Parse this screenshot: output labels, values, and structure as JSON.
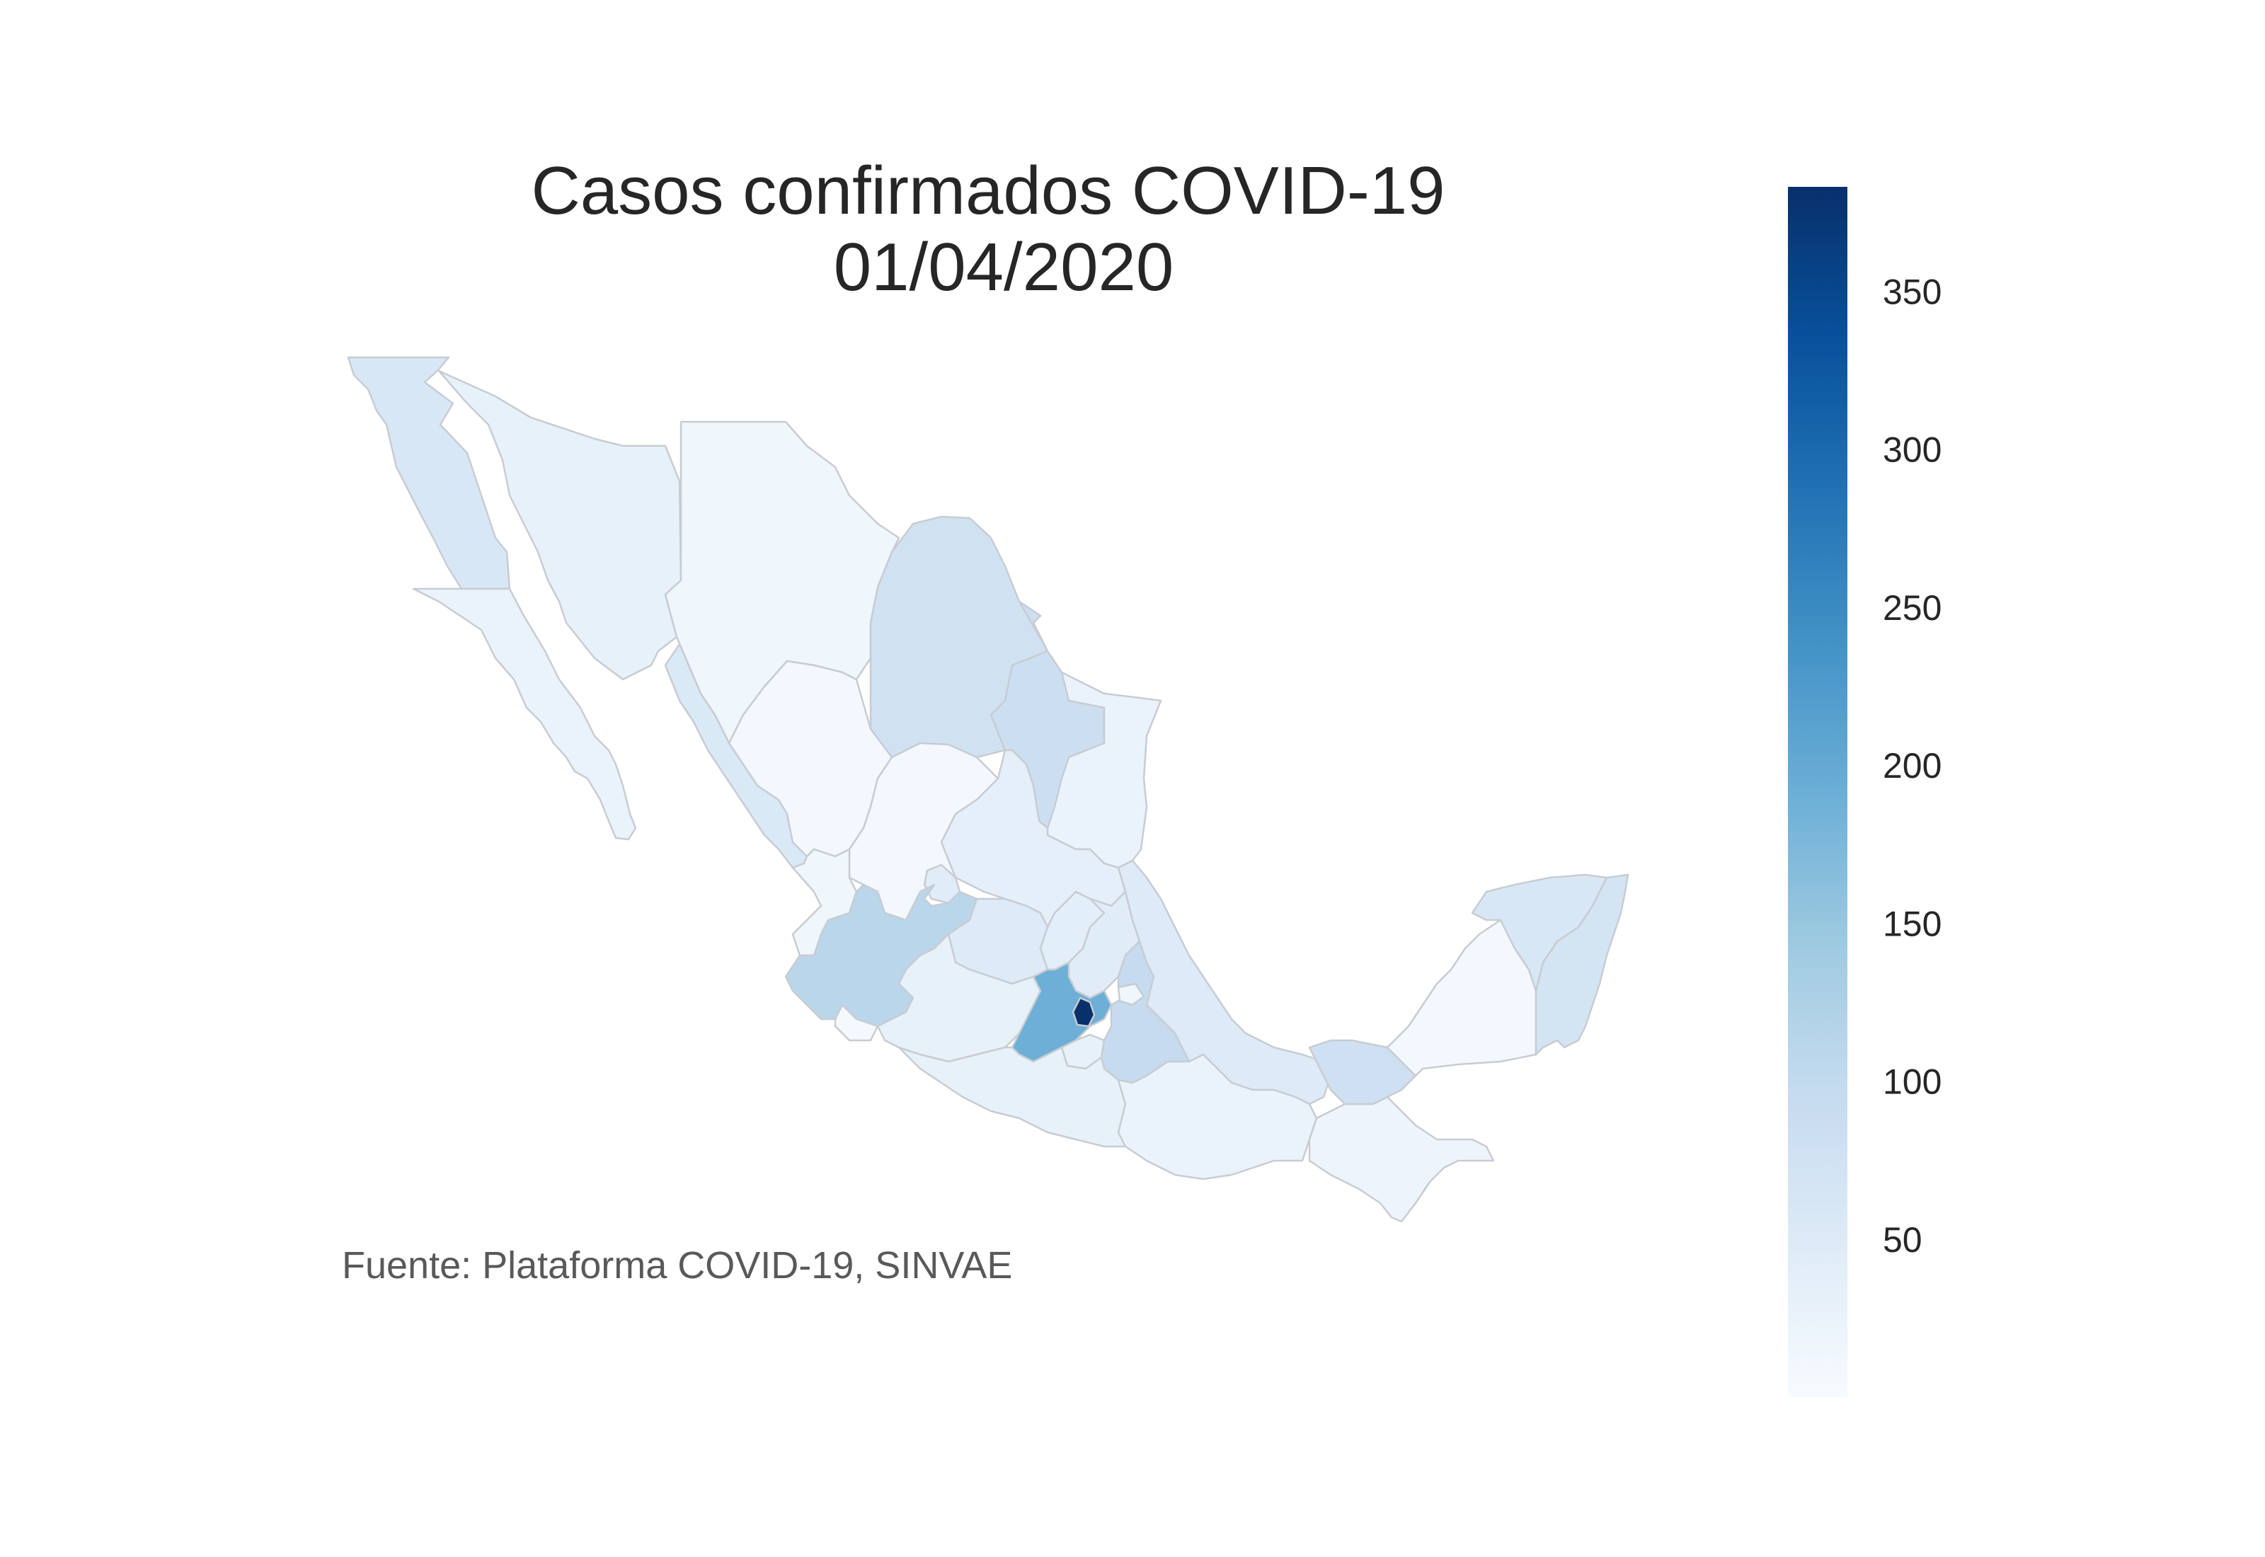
{
  "title": {
    "line1": "Casos confirmados COVID-19",
    "line2": "01/04/2020"
  },
  "source": "Fuente: Plataforma COVID-19, SINVAE",
  "colorbar": {
    "min": 0,
    "max": 383,
    "ticks": [
      {
        "value": 50,
        "label": "50"
      },
      {
        "value": 100,
        "label": "100"
      },
      {
        "value": 150,
        "label": "150"
      },
      {
        "value": 200,
        "label": "200"
      },
      {
        "value": 250,
        "label": "250"
      },
      {
        "value": 300,
        "label": "300"
      },
      {
        "value": 350,
        "label": "350"
      }
    ],
    "colormap": "Blues",
    "stops": [
      "#f7fbff",
      "#deebf7",
      "#c6dbef",
      "#9ecae1",
      "#6baed6",
      "#4292c6",
      "#2171b5",
      "#08519c",
      "#08306b"
    ]
  },
  "chart_data": {
    "type": "choropleth",
    "title": "Casos confirmados COVID-19 01/04/2020",
    "legend": "colorbar right",
    "value_range": [
      0,
      383
    ],
    "regions": [
      {
        "name": "Baja California",
        "value": 60
      },
      {
        "name": "Baja California Sur",
        "value": 25
      },
      {
        "name": "Sonora",
        "value": 30
      },
      {
        "name": "Chihuahua",
        "value": 15
      },
      {
        "name": "Coahuila",
        "value": 75
      },
      {
        "name": "Nuevo León",
        "value": 85
      },
      {
        "name": "Tamaulipas",
        "value": 25
      },
      {
        "name": "Sinaloa",
        "value": 55
      },
      {
        "name": "Durango",
        "value": 10
      },
      {
        "name": "Zacatecas",
        "value": 10
      },
      {
        "name": "San Luis Potosí",
        "value": 35
      },
      {
        "name": "Nayarit",
        "value": 15
      },
      {
        "name": "Aguascalientes",
        "value": 45
      },
      {
        "name": "Jalisco",
        "value": 110
      },
      {
        "name": "Guanajuato",
        "value": 50
      },
      {
        "name": "Querétaro",
        "value": 40
      },
      {
        "name": "Hidalgo",
        "value": 45
      },
      {
        "name": "Colima",
        "value": 5
      },
      {
        "name": "Michoacán",
        "value": 30
      },
      {
        "name": "Estado de México",
        "value": 190
      },
      {
        "name": "Ciudad de México",
        "value": 383
      },
      {
        "name": "Tlaxcala",
        "value": 15
      },
      {
        "name": "Morelos",
        "value": 30
      },
      {
        "name": "Puebla",
        "value": 95
      },
      {
        "name": "Veracruz",
        "value": 50
      },
      {
        "name": "Guerrero",
        "value": 30
      },
      {
        "name": "Oaxaca",
        "value": 25
      },
      {
        "name": "Chiapas",
        "value": 20
      },
      {
        "name": "Tabasco",
        "value": 80
      },
      {
        "name": "Campeche",
        "value": 10
      },
      {
        "name": "Yucatán",
        "value": 60
      },
      {
        "name": "Quintana Roo",
        "value": 70
      }
    ]
  }
}
